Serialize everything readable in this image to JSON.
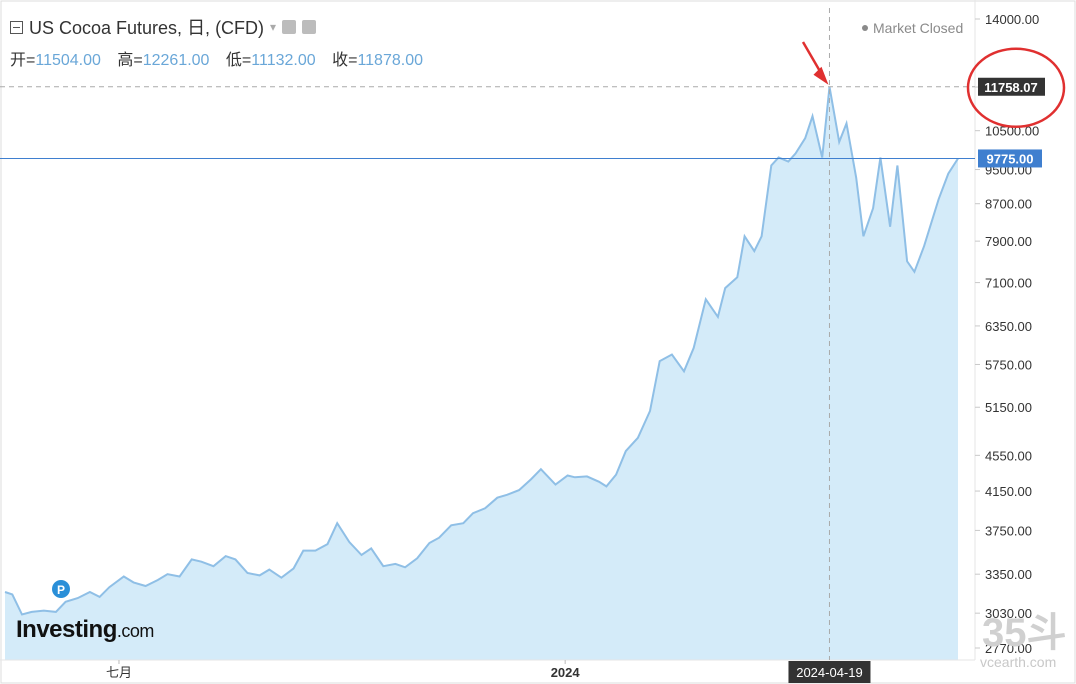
{
  "header": {
    "title": "US Cocoa Futures, 日, (CFD)",
    "open_label": "开=",
    "open": "11504.00",
    "high_label": "高=",
    "high": "12261.00",
    "low_label": "低=",
    "low": "11132.00",
    "close_label": "收=",
    "close": "11878.00",
    "status": "Market Closed"
  },
  "branding": {
    "logo": "Investing",
    "logo_suffix": ".com",
    "watermark": "35斗",
    "watermark_site": "vcearth.com"
  },
  "colors": {
    "line": "#8fbfe6",
    "fill": "#d4ebf9",
    "current_badge": "#3f7fcf",
    "crosshair_badge": "#333333",
    "annotation": "#e03030"
  },
  "chart_data": {
    "type": "area",
    "y_ticks": [
      14000,
      11750,
      10500,
      9500,
      8700,
      7900,
      7100,
      6350,
      5750,
      5150,
      4550,
      4150,
      3750,
      3350,
      3030,
      2770
    ],
    "y_tick_labels": [
      "14000.00",
      "",
      "10500.00",
      "9500.00",
      "8700.00",
      "7900.00",
      "7100.00",
      "6350.00",
      "5750.00",
      "5150.00",
      "4550.00",
      "4150.00",
      "3750.00",
      "3350.00",
      "3030.00",
      "2770.00"
    ],
    "x_labels": [
      {
        "label": "七月",
        "date": "2023-07-01"
      },
      {
        "label": "2024",
        "date": "2024-01-01"
      }
    ],
    "crosshair": {
      "date": "2024-04-19",
      "value": "11758.07"
    },
    "current_value": "9775.00",
    "points": [
      [
        "2023-05-15",
        3200
      ],
      [
        "2023-05-18",
        3180
      ],
      [
        "2023-05-22",
        3020
      ],
      [
        "2023-05-26",
        3040
      ],
      [
        "2023-05-31",
        3050
      ],
      [
        "2023-06-05",
        3040
      ],
      [
        "2023-06-09",
        3120
      ],
      [
        "2023-06-14",
        3150
      ],
      [
        "2023-06-19",
        3200
      ],
      [
        "2023-06-23",
        3160
      ],
      [
        "2023-06-27",
        3240
      ],
      [
        "2023-07-03",
        3330
      ],
      [
        "2023-07-07",
        3280
      ],
      [
        "2023-07-12",
        3250
      ],
      [
        "2023-07-17",
        3300
      ],
      [
        "2023-07-21",
        3350
      ],
      [
        "2023-07-26",
        3330
      ],
      [
        "2023-07-31",
        3480
      ],
      [
        "2023-08-04",
        3460
      ],
      [
        "2023-08-09",
        3420
      ],
      [
        "2023-08-14",
        3510
      ],
      [
        "2023-08-18",
        3480
      ],
      [
        "2023-08-23",
        3360
      ],
      [
        "2023-08-28",
        3340
      ],
      [
        "2023-09-01",
        3390
      ],
      [
        "2023-09-06",
        3320
      ],
      [
        "2023-09-11",
        3400
      ],
      [
        "2023-09-15",
        3560
      ],
      [
        "2023-09-20",
        3560
      ],
      [
        "2023-09-25",
        3620
      ],
      [
        "2023-09-29",
        3820
      ],
      [
        "2023-10-04",
        3640
      ],
      [
        "2023-10-09",
        3520
      ],
      [
        "2023-10-13",
        3580
      ],
      [
        "2023-10-18",
        3420
      ],
      [
        "2023-10-23",
        3440
      ],
      [
        "2023-10-27",
        3410
      ],
      [
        "2023-11-01",
        3490
      ],
      [
        "2023-11-06",
        3630
      ],
      [
        "2023-11-10",
        3680
      ],
      [
        "2023-11-15",
        3800
      ],
      [
        "2023-11-20",
        3820
      ],
      [
        "2023-11-24",
        3920
      ],
      [
        "2023-11-29",
        3970
      ],
      [
        "2023-12-04",
        4080
      ],
      [
        "2023-12-08",
        4110
      ],
      [
        "2023-12-13",
        4160
      ],
      [
        "2023-12-18",
        4280
      ],
      [
        "2023-12-22",
        4390
      ],
      [
        "2023-12-28",
        4220
      ],
      [
        "2024-01-02",
        4320
      ],
      [
        "2024-01-05",
        4300
      ],
      [
        "2024-01-10",
        4310
      ],
      [
        "2024-01-15",
        4250
      ],
      [
        "2024-01-18",
        4200
      ],
      [
        "2024-01-22",
        4330
      ],
      [
        "2024-01-26",
        4600
      ],
      [
        "2024-01-31",
        4760
      ],
      [
        "2024-02-05",
        5100
      ],
      [
        "2024-02-09",
        5800
      ],
      [
        "2024-02-14",
        5900
      ],
      [
        "2024-02-19",
        5650
      ],
      [
        "2024-02-23",
        6000
      ],
      [
        "2024-02-28",
        6800
      ],
      [
        "2024-03-04",
        6500
      ],
      [
        "2024-03-07",
        7000
      ],
      [
        "2024-03-12",
        7200
      ],
      [
        "2024-03-15",
        8000
      ],
      [
        "2024-03-19",
        7700
      ],
      [
        "2024-03-22",
        8000
      ],
      [
        "2024-03-26",
        9600
      ],
      [
        "2024-03-29",
        9800
      ],
      [
        "2024-04-02",
        9700
      ],
      [
        "2024-04-05",
        9900
      ],
      [
        "2024-04-09",
        10300
      ],
      [
        "2024-04-12",
        10900
      ],
      [
        "2024-04-16",
        9800
      ],
      [
        "2024-04-19",
        11758
      ],
      [
        "2024-04-23",
        10200
      ],
      [
        "2024-04-26",
        10700
      ],
      [
        "2024-04-30",
        9300
      ],
      [
        "2024-05-03",
        8000
      ],
      [
        "2024-05-07",
        8600
      ],
      [
        "2024-05-10",
        9800
      ],
      [
        "2024-05-14",
        8200
      ],
      [
        "2024-05-17",
        9600
      ],
      [
        "2024-05-21",
        7500
      ],
      [
        "2024-05-24",
        7300
      ],
      [
        "2024-05-28",
        7800
      ],
      [
        "2024-06-03",
        8800
      ],
      [
        "2024-06-07",
        9400
      ],
      [
        "2024-06-11",
        9775
      ]
    ]
  }
}
